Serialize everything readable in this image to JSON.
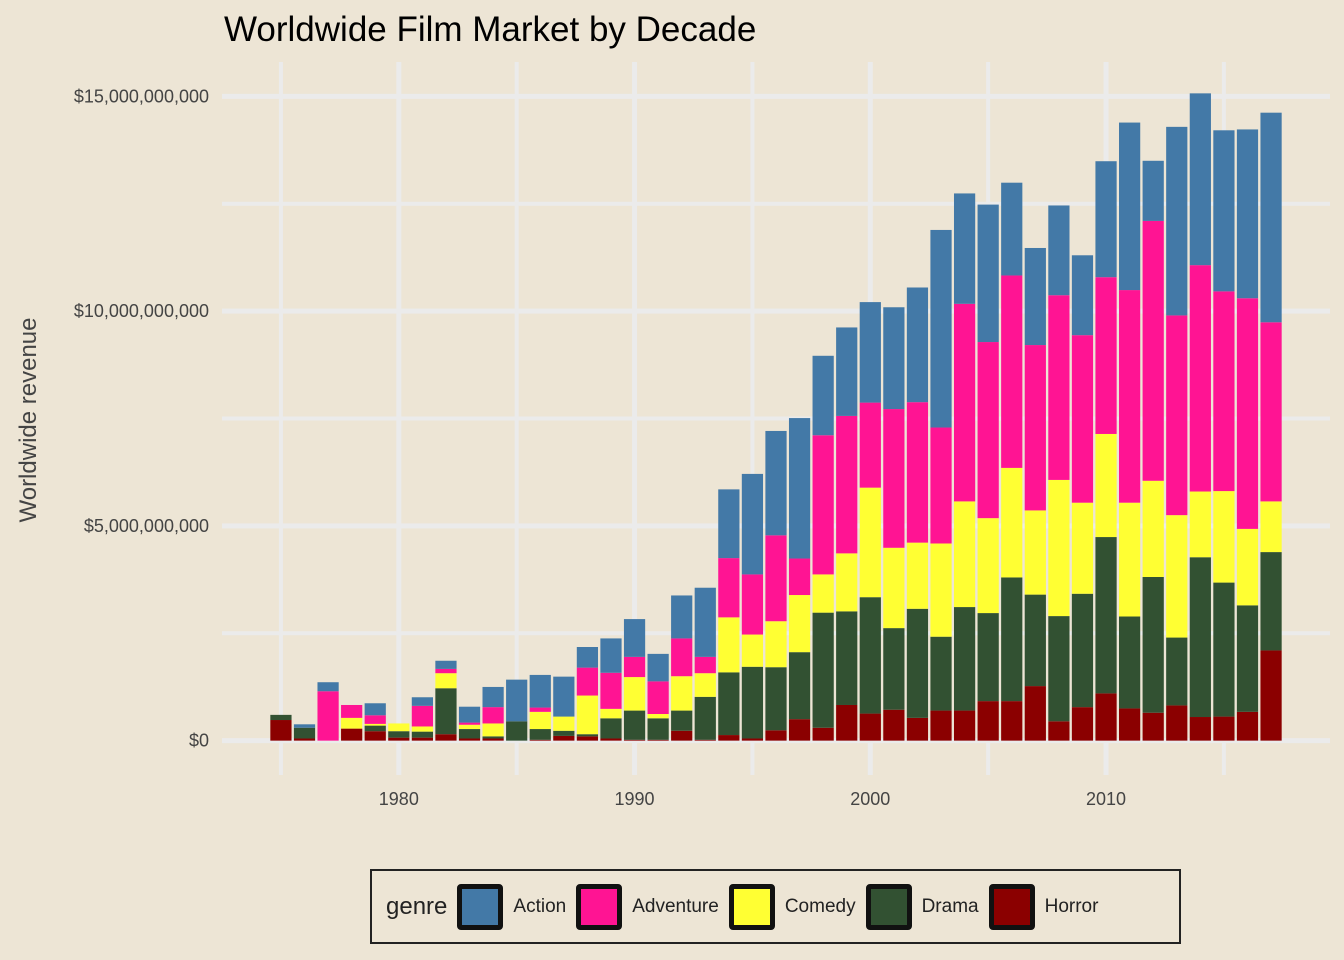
{
  "chart_data": {
    "type": "bar",
    "stacked": true,
    "title": "Worldwide Film Market by Decade",
    "xlabel": "",
    "ylabel": "Worldwide revenue",
    "xlim": [
      1972.5,
      2019.5
    ],
    "ylim": [
      -800000000,
      15800000000
    ],
    "x_ticks": [
      1980,
      1990,
      2000,
      2010
    ],
    "y_ticks": [
      0,
      5000000000,
      10000000000,
      15000000000
    ],
    "y_tick_labels": [
      "$0",
      "$5,000,000,000",
      "$10,000,000,000",
      "$15,000,000,000"
    ],
    "grid": true,
    "legend_position": "bottom",
    "legend_title": "genre",
    "x": [
      1975,
      1976,
      1977,
      1978,
      1979,
      1980,
      1981,
      1982,
      1983,
      1984,
      1985,
      1986,
      1987,
      1988,
      1989,
      1990,
      1991,
      1992,
      1993,
      1994,
      1995,
      1996,
      1997,
      1998,
      1999,
      2000,
      2001,
      2002,
      2003,
      2004,
      2005,
      2006,
      2007,
      2008,
      2009,
      2010,
      2011,
      2012,
      2013,
      2014,
      2015,
      2016,
      2017
    ],
    "series": [
      {
        "name": "Horror",
        "color": "#8b0000",
        "values": [
          0.48,
          0.05,
          0,
          0.28,
          0.22,
          0.07,
          0.07,
          0.15,
          0.05,
          0.05,
          0,
          0.02,
          0.11,
          0.1,
          0.05,
          0.02,
          0.02,
          0.23,
          0.02,
          0.13,
          0.05,
          0.24,
          0.5,
          0.3,
          0.83,
          0.63,
          0.72,
          0.53,
          0.7,
          0.7,
          0.92,
          0.92,
          1.27,
          0.45,
          0.78,
          1.1,
          0.75,
          0.65,
          0.82,
          0.55,
          0.56,
          0.67,
          2.1
        ]
      },
      {
        "name": "Drama",
        "color": "#325132",
        "values": [
          0.12,
          0.25,
          0,
          0,
          0.13,
          0.15,
          0.14,
          1.07,
          0.22,
          0.05,
          0.45,
          0.25,
          0.12,
          0.05,
          0.47,
          0.68,
          0.5,
          0.47,
          1.0,
          1.46,
          1.67,
          1.47,
          1.56,
          2.68,
          2.18,
          2.71,
          1.9,
          2.54,
          1.72,
          2.41,
          2.05,
          2.88,
          2.13,
          2.45,
          2.64,
          3.64,
          2.14,
          3.16,
          1.58,
          3.72,
          3.12,
          2.48,
          2.29
        ]
      },
      {
        "name": "Comedy",
        "color": "#ffff33",
        "values": [
          0,
          0,
          0,
          0.25,
          0.04,
          0.18,
          0.12,
          0.35,
          0.1,
          0.3,
          0,
          0.4,
          0.33,
          0.9,
          0.22,
          0.78,
          0.1,
          0.8,
          0.55,
          1.28,
          0.75,
          1.07,
          1.33,
          0.89,
          1.35,
          2.55,
          1.87,
          1.54,
          2.17,
          2.46,
          2.21,
          2.55,
          1.96,
          3.17,
          2.12,
          2.4,
          2.65,
          2.24,
          2.85,
          1.53,
          2.13,
          1.78,
          1.18
        ]
      },
      {
        "name": "Adventure",
        "color": "#ff1493",
        "values": [
          0,
          0,
          1.15,
          0.3,
          0.2,
          0,
          0.48,
          0.1,
          0.05,
          0.38,
          0,
          0.1,
          0,
          0.65,
          0.84,
          0.47,
          0.76,
          0.88,
          0.38,
          1.38,
          1.4,
          2.0,
          0.85,
          3.24,
          3.2,
          1.98,
          3.23,
          3.27,
          2.7,
          4.6,
          4.1,
          4.48,
          3.85,
          4.3,
          3.9,
          3.65,
          4.95,
          6.05,
          4.65,
          5.27,
          4.65,
          5.37,
          4.17
        ]
      },
      {
        "name": "Action",
        "color": "#4379a7",
        "values": [
          0,
          0.08,
          0.21,
          0,
          0.28,
          0,
          0.2,
          0.19,
          0.37,
          0.47,
          0.97,
          0.76,
          0.93,
          0.48,
          0.8,
          0.88,
          0.64,
          1.0,
          1.61,
          1.6,
          2.34,
          2.43,
          3.27,
          1.85,
          2.06,
          2.34,
          2.37,
          2.67,
          4.6,
          2.57,
          3.2,
          2.16,
          2.26,
          2.09,
          1.86,
          2.7,
          3.9,
          1.4,
          4.39,
          4.0,
          3.75,
          3.93,
          4.88
        ]
      }
    ],
    "value_unit": "billion USD"
  },
  "legend": {
    "title": "genre",
    "items": [
      {
        "label": "Action",
        "color": "#4379a7"
      },
      {
        "label": "Adventure",
        "color": "#ff1493"
      },
      {
        "label": "Comedy",
        "color": "#ffff33"
      },
      {
        "label": "Drama",
        "color": "#325132"
      },
      {
        "label": "Horror",
        "color": "#8b0000"
      }
    ]
  }
}
